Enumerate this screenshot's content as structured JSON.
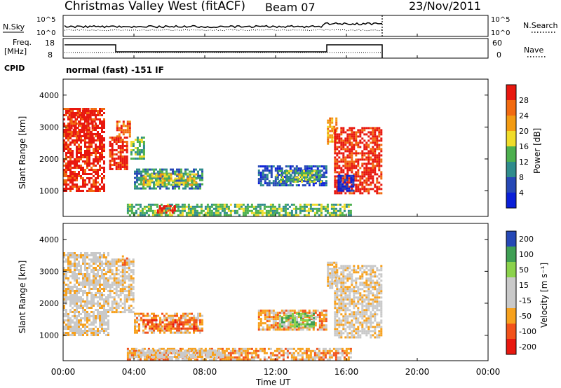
{
  "header": {
    "title": "Christmas Valley West (fitACF)",
    "beam": "Beam 07",
    "date": "23/Nov/2011"
  },
  "strips": {
    "nsky_label": "N.Sky",
    "nsky_ticks": [
      "10^5",
      "10^0"
    ],
    "nsearch_label": "N.Search",
    "nsearch_ticks": [
      "10^5",
      "10^0"
    ],
    "freq_label_1": "Freq.",
    "freq_label_2": "[MHz]",
    "freq_ticks": [
      "18",
      "8"
    ],
    "nave_label": "Nave",
    "nave_ticks": [
      "60",
      "0"
    ],
    "cpid_label": "CPID",
    "cpid_text": "normal (fast) -151 IF"
  },
  "colors": {
    "power_scale": [
      "#0a1fd8",
      "#2648b6",
      "#2f8c8c",
      "#4db04f",
      "#f0dc2a",
      "#f39b12",
      "#f26a10",
      "#e8180f"
    ],
    "velocity_scale": [
      "#e8180f",
      "#f2521a",
      "#f7a11d",
      "#c9c9c9",
      "#c9c9c9",
      "#8bd24c",
      "#3f9f54",
      "#2648b6"
    ]
  },
  "chart_data": [
    {
      "type": "heatmap",
      "name_key": "power",
      "ylabel": "Slant Range [km]",
      "xlim_hours": [
        0,
        24
      ],
      "ylim_km": [
        200,
        4500
      ],
      "y_ticks": [
        "4000",
        "3000",
        "2000",
        "1000"
      ],
      "colorbar_label": "Power [dB]",
      "colorbar_ticks": [
        "28",
        "24",
        "20",
        "16",
        "12",
        "8",
        "4"
      ],
      "blobs": [
        {
          "t0": 0.0,
          "t1": 2.3,
          "r0": 1000,
          "r1": 3600,
          "level": 7
        },
        {
          "t0": 0.3,
          "t1": 1.8,
          "r0": 2700,
          "r1": 3600,
          "level": 7
        },
        {
          "t0": 2.6,
          "t1": 3.6,
          "r0": 1700,
          "r1": 2700,
          "level": 7
        },
        {
          "t0": 3.0,
          "t1": 3.8,
          "r0": 2700,
          "r1": 3200,
          "level": 6
        },
        {
          "t0": 3.8,
          "t1": 4.6,
          "r0": 2000,
          "r1": 2700,
          "level": 3
        },
        {
          "t0": 4.0,
          "t1": 7.9,
          "r0": 1100,
          "r1": 1700,
          "level": 2
        },
        {
          "t0": 4.5,
          "t1": 7.5,
          "r0": 1200,
          "r1": 1550,
          "level": 4
        },
        {
          "t0": 3.6,
          "t1": 16.2,
          "r0": 250,
          "r1": 600,
          "level": 3
        },
        {
          "t0": 5.3,
          "t1": 6.3,
          "r0": 300,
          "r1": 550,
          "level": 7
        },
        {
          "t0": 11.0,
          "t1": 14.9,
          "r0": 1150,
          "r1": 1800,
          "level": 1
        },
        {
          "t0": 12.0,
          "t1": 14.5,
          "r0": 1300,
          "r1": 1650,
          "level": 3
        },
        {
          "t0": 14.9,
          "t1": 15.4,
          "r0": 2500,
          "r1": 3300,
          "level": 5
        },
        {
          "t0": 15.3,
          "t1": 18.0,
          "r0": 900,
          "r1": 3000,
          "level": 7
        },
        {
          "t0": 15.5,
          "t1": 16.4,
          "r0": 1000,
          "r1": 1500,
          "level": 0
        }
      ]
    },
    {
      "type": "heatmap",
      "name_key": "velocity",
      "ylabel": "Slant Range [km]",
      "xlabel": "Time UT",
      "xlim_hours": [
        0,
        24
      ],
      "ylim_km": [
        200,
        4500
      ],
      "x_ticks": [
        "00:00",
        "04:00",
        "08:00",
        "12:00",
        "16:00",
        "20:00",
        "00:00"
      ],
      "y_ticks": [
        "4000",
        "3000",
        "2000",
        "1000"
      ],
      "colorbar_label": "Velocity [m s⁻¹]",
      "colorbar_ticks": [
        "200",
        "100",
        "50",
        "15",
        "-15",
        "-50",
        "-100",
        "-200"
      ],
      "blobs": [
        {
          "t0": 0.0,
          "t1": 2.6,
          "r0": 1000,
          "r1": 3600,
          "level": 3
        },
        {
          "t0": 2.6,
          "t1": 4.0,
          "r0": 1700,
          "r1": 3400,
          "level": 3
        },
        {
          "t0": 3.2,
          "t1": 3.6,
          "r0": 3200,
          "r1": 3500,
          "level": 2
        },
        {
          "t0": 4.0,
          "t1": 7.9,
          "r0": 1100,
          "r1": 1700,
          "level": 2
        },
        {
          "t0": 4.5,
          "t1": 7.5,
          "r0": 1200,
          "r1": 1500,
          "level": 1
        },
        {
          "t0": 3.6,
          "t1": 16.2,
          "r0": 250,
          "r1": 600,
          "level": 2
        },
        {
          "t0": 4.0,
          "t1": 9.0,
          "r0": 300,
          "r1": 550,
          "level": 3
        },
        {
          "t0": 11.0,
          "t1": 14.9,
          "r0": 1150,
          "r1": 1800,
          "level": 2
        },
        {
          "t0": 12.2,
          "t1": 14.2,
          "r0": 1300,
          "r1": 1700,
          "level": 5
        },
        {
          "t0": 14.9,
          "t1": 15.4,
          "r0": 2500,
          "r1": 3300,
          "level": 3
        },
        {
          "t0": 15.3,
          "t1": 18.0,
          "r0": 900,
          "r1": 3200,
          "level": 3
        }
      ]
    }
  ]
}
